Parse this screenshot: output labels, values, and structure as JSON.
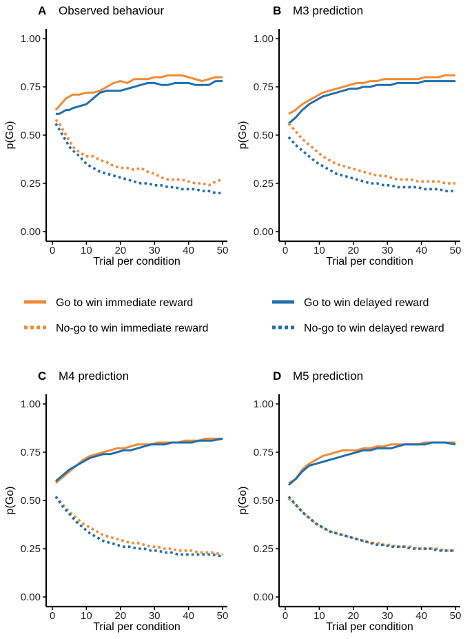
{
  "figure": {
    "legend": {
      "entries": [
        {
          "label": "Go to win immediate reward",
          "color": "#F08A35",
          "style": "solid"
        },
        {
          "label": "Go to win delayed reward",
          "color": "#1F6FAE",
          "style": "solid"
        },
        {
          "label": "No-go to win immediate reward",
          "color": "#F08A35",
          "style": "dotted"
        },
        {
          "label": "No-go to win delayed reward",
          "color": "#1F6FAE",
          "style": "dotted"
        }
      ]
    }
  },
  "chart_data": [
    {
      "type": "line",
      "panel_letter": "A",
      "title": "Observed behaviour",
      "xlabel": "Trial per condition",
      "ylabel": "p(Go)",
      "xlim": [
        0,
        50
      ],
      "ylim": [
        0,
        1
      ],
      "xticks": [
        0,
        10,
        20,
        30,
        40,
        50
      ],
      "yticks": [
        "0.00",
        "0.25",
        "0.50",
        "0.75",
        "1.00"
      ],
      "series": [
        {
          "name": "Go to win immediate reward",
          "color": "#F08A35",
          "style": "solid",
          "x": [
            1,
            2,
            3,
            4,
            5,
            6,
            8,
            10,
            12,
            14,
            16,
            18,
            20,
            22,
            24,
            26,
            28,
            30,
            32,
            34,
            36,
            38,
            40,
            42,
            44,
            46,
            48,
            50
          ],
          "y": [
            0.63,
            0.65,
            0.67,
            0.69,
            0.7,
            0.71,
            0.71,
            0.72,
            0.72,
            0.73,
            0.75,
            0.77,
            0.78,
            0.77,
            0.79,
            0.79,
            0.79,
            0.8,
            0.8,
            0.81,
            0.81,
            0.81,
            0.8,
            0.79,
            0.78,
            0.79,
            0.8,
            0.8
          ]
        },
        {
          "name": "Go to win delayed reward",
          "color": "#1F6FAE",
          "style": "solid",
          "x": [
            1,
            2,
            3,
            4,
            5,
            6,
            8,
            10,
            12,
            14,
            16,
            18,
            20,
            22,
            24,
            26,
            28,
            30,
            32,
            34,
            36,
            38,
            40,
            42,
            44,
            46,
            48,
            50
          ],
          "y": [
            0.61,
            0.61,
            0.62,
            0.63,
            0.63,
            0.64,
            0.65,
            0.66,
            0.69,
            0.72,
            0.73,
            0.73,
            0.73,
            0.74,
            0.75,
            0.76,
            0.77,
            0.77,
            0.76,
            0.76,
            0.77,
            0.77,
            0.77,
            0.76,
            0.76,
            0.76,
            0.78,
            0.78
          ]
        },
        {
          "name": "No-go to win immediate reward",
          "color": "#F08A35",
          "style": "dotted",
          "x": [
            1,
            2,
            3,
            4,
            5,
            6,
            8,
            10,
            12,
            14,
            16,
            18,
            20,
            22,
            24,
            26,
            28,
            30,
            32,
            34,
            36,
            38,
            40,
            42,
            44,
            46,
            48,
            50
          ],
          "y": [
            0.58,
            0.56,
            0.53,
            0.5,
            0.47,
            0.44,
            0.41,
            0.39,
            0.39,
            0.37,
            0.36,
            0.34,
            0.33,
            0.33,
            0.32,
            0.33,
            0.31,
            0.3,
            0.28,
            0.27,
            0.27,
            0.27,
            0.26,
            0.25,
            0.25,
            0.24,
            0.26,
            0.27
          ]
        },
        {
          "name": "No-go to win delayed reward",
          "color": "#1F6FAE",
          "style": "dotted",
          "x": [
            1,
            2,
            3,
            4,
            5,
            6,
            8,
            10,
            12,
            14,
            16,
            18,
            20,
            22,
            24,
            26,
            28,
            30,
            32,
            34,
            36,
            38,
            40,
            42,
            44,
            46,
            48,
            50
          ],
          "y": [
            0.56,
            0.53,
            0.5,
            0.47,
            0.44,
            0.42,
            0.39,
            0.35,
            0.33,
            0.31,
            0.3,
            0.29,
            0.28,
            0.27,
            0.26,
            0.25,
            0.25,
            0.24,
            0.24,
            0.23,
            0.23,
            0.22,
            0.22,
            0.22,
            0.21,
            0.21,
            0.2,
            0.2
          ]
        }
      ]
    },
    {
      "type": "line",
      "panel_letter": "B",
      "title": "M3 prediction",
      "xlabel": "Trial per condition",
      "ylabel": "p(Go)",
      "xlim": [
        0,
        50
      ],
      "ylim": [
        0,
        1
      ],
      "xticks": [
        0,
        10,
        20,
        30,
        40,
        50
      ],
      "yticks": [
        "0.00",
        "0.25",
        "0.50",
        "0.75",
        "1.00"
      ],
      "series": [
        {
          "name": "Go to win immediate reward",
          "color": "#F08A35",
          "style": "solid",
          "x": [
            1,
            3,
            5,
            7,
            9,
            11,
            13,
            15,
            17,
            19,
            21,
            23,
            25,
            27,
            29,
            31,
            33,
            35,
            37,
            39,
            41,
            43,
            45,
            47,
            50
          ],
          "y": [
            0.61,
            0.63,
            0.66,
            0.68,
            0.7,
            0.72,
            0.73,
            0.74,
            0.75,
            0.76,
            0.77,
            0.77,
            0.78,
            0.78,
            0.79,
            0.79,
            0.79,
            0.79,
            0.79,
            0.79,
            0.8,
            0.8,
            0.8,
            0.81,
            0.81
          ]
        },
        {
          "name": "Go to win delayed reward",
          "color": "#1F6FAE",
          "style": "solid",
          "x": [
            1,
            3,
            5,
            7,
            9,
            11,
            13,
            15,
            17,
            19,
            21,
            23,
            25,
            27,
            29,
            31,
            33,
            35,
            37,
            39,
            41,
            43,
            45,
            47,
            50
          ],
          "y": [
            0.56,
            0.59,
            0.63,
            0.66,
            0.68,
            0.7,
            0.71,
            0.72,
            0.73,
            0.74,
            0.74,
            0.75,
            0.75,
            0.76,
            0.76,
            0.76,
            0.77,
            0.77,
            0.77,
            0.77,
            0.78,
            0.78,
            0.78,
            0.78,
            0.78
          ]
        },
        {
          "name": "No-go to win immediate reward",
          "color": "#F08A35",
          "style": "dotted",
          "x": [
            1,
            3,
            5,
            7,
            9,
            11,
            13,
            15,
            17,
            19,
            21,
            23,
            25,
            27,
            29,
            31,
            33,
            35,
            37,
            39,
            41,
            43,
            45,
            47,
            50
          ],
          "y": [
            0.56,
            0.52,
            0.48,
            0.45,
            0.42,
            0.39,
            0.37,
            0.35,
            0.34,
            0.33,
            0.32,
            0.31,
            0.3,
            0.29,
            0.29,
            0.28,
            0.27,
            0.27,
            0.27,
            0.26,
            0.26,
            0.26,
            0.26,
            0.25,
            0.25
          ]
        },
        {
          "name": "No-go to win delayed reward",
          "color": "#1F6FAE",
          "style": "dotted",
          "x": [
            1,
            3,
            5,
            7,
            9,
            11,
            13,
            15,
            17,
            19,
            21,
            23,
            25,
            27,
            29,
            31,
            33,
            35,
            37,
            39,
            41,
            43,
            45,
            47,
            50
          ],
          "y": [
            0.49,
            0.45,
            0.42,
            0.39,
            0.36,
            0.34,
            0.32,
            0.3,
            0.29,
            0.28,
            0.27,
            0.26,
            0.25,
            0.25,
            0.24,
            0.24,
            0.23,
            0.23,
            0.23,
            0.23,
            0.22,
            0.22,
            0.22,
            0.21,
            0.21
          ]
        }
      ]
    },
    {
      "type": "line",
      "panel_letter": "C",
      "title": "M4 prediction",
      "xlabel": "Trial per condition",
      "ylabel": "p(Go)",
      "xlim": [
        0,
        50
      ],
      "ylim": [
        0,
        1
      ],
      "xticks": [
        0,
        10,
        20,
        30,
        40,
        50
      ],
      "yticks": [
        "0.00",
        "0.25",
        "0.50",
        "0.75",
        "1.00"
      ],
      "series": [
        {
          "name": "Go to win immediate reward",
          "color": "#F08A35",
          "style": "solid",
          "x": [
            1,
            3,
            5,
            7,
            9,
            11,
            13,
            15,
            17,
            19,
            21,
            23,
            25,
            27,
            29,
            31,
            33,
            35,
            37,
            39,
            41,
            43,
            45,
            47,
            50
          ],
          "y": [
            0.59,
            0.62,
            0.65,
            0.68,
            0.71,
            0.73,
            0.74,
            0.75,
            0.76,
            0.77,
            0.77,
            0.78,
            0.79,
            0.79,
            0.79,
            0.8,
            0.8,
            0.8,
            0.8,
            0.81,
            0.81,
            0.81,
            0.82,
            0.82,
            0.82
          ]
        },
        {
          "name": "Go to win delayed reward",
          "color": "#1F6FAE",
          "style": "solid",
          "x": [
            1,
            3,
            5,
            7,
            9,
            11,
            13,
            15,
            17,
            19,
            21,
            23,
            25,
            27,
            29,
            31,
            33,
            35,
            37,
            39,
            41,
            43,
            45,
            47,
            50
          ],
          "y": [
            0.6,
            0.63,
            0.66,
            0.68,
            0.7,
            0.72,
            0.73,
            0.74,
            0.74,
            0.75,
            0.76,
            0.76,
            0.77,
            0.78,
            0.79,
            0.79,
            0.79,
            0.8,
            0.8,
            0.8,
            0.8,
            0.81,
            0.81,
            0.81,
            0.82
          ]
        },
        {
          "name": "No-go to win immediate reward",
          "color": "#F08A35",
          "style": "dotted",
          "x": [
            1,
            3,
            5,
            7,
            9,
            11,
            13,
            15,
            17,
            19,
            21,
            23,
            25,
            27,
            29,
            31,
            33,
            35,
            37,
            39,
            41,
            43,
            45,
            47,
            50
          ],
          "y": [
            0.52,
            0.48,
            0.44,
            0.41,
            0.38,
            0.36,
            0.34,
            0.32,
            0.31,
            0.3,
            0.29,
            0.28,
            0.28,
            0.27,
            0.26,
            0.26,
            0.25,
            0.25,
            0.24,
            0.24,
            0.24,
            0.23,
            0.23,
            0.23,
            0.22
          ]
        },
        {
          "name": "No-go to win delayed reward",
          "color": "#1F6FAE",
          "style": "dotted",
          "x": [
            1,
            3,
            5,
            7,
            9,
            11,
            13,
            15,
            17,
            19,
            21,
            23,
            25,
            27,
            29,
            31,
            33,
            35,
            37,
            39,
            41,
            43,
            45,
            47,
            50
          ],
          "y": [
            0.52,
            0.47,
            0.43,
            0.39,
            0.36,
            0.33,
            0.31,
            0.29,
            0.28,
            0.27,
            0.26,
            0.26,
            0.25,
            0.25,
            0.24,
            0.24,
            0.23,
            0.23,
            0.22,
            0.22,
            0.22,
            0.22,
            0.22,
            0.22,
            0.21
          ]
        }
      ]
    },
    {
      "type": "line",
      "panel_letter": "D",
      "title": "M5 prediction",
      "xlabel": "Trial per condition",
      "ylabel": "p(Go)",
      "xlim": [
        0,
        50
      ],
      "ylim": [
        0,
        1
      ],
      "xticks": [
        0,
        10,
        20,
        30,
        40,
        50
      ],
      "yticks": [
        "0.00",
        "0.25",
        "0.50",
        "0.75",
        "1.00"
      ],
      "series": [
        {
          "name": "Go to win immediate reward",
          "color": "#F08A35",
          "style": "solid",
          "x": [
            1,
            3,
            5,
            7,
            9,
            11,
            13,
            15,
            17,
            19,
            21,
            23,
            25,
            27,
            29,
            31,
            33,
            35,
            37,
            39,
            41,
            43,
            45,
            47,
            50
          ],
          "y": [
            0.59,
            0.61,
            0.66,
            0.69,
            0.71,
            0.73,
            0.74,
            0.75,
            0.76,
            0.76,
            0.76,
            0.77,
            0.77,
            0.78,
            0.78,
            0.79,
            0.79,
            0.79,
            0.79,
            0.79,
            0.8,
            0.8,
            0.8,
            0.8,
            0.8
          ]
        },
        {
          "name": "Go to win delayed reward",
          "color": "#1F6FAE",
          "style": "solid",
          "x": [
            1,
            3,
            5,
            7,
            9,
            11,
            13,
            15,
            17,
            19,
            21,
            23,
            25,
            27,
            29,
            31,
            33,
            35,
            37,
            39,
            41,
            43,
            45,
            47,
            50
          ],
          "y": [
            0.58,
            0.61,
            0.65,
            0.68,
            0.69,
            0.7,
            0.71,
            0.72,
            0.73,
            0.74,
            0.75,
            0.76,
            0.76,
            0.77,
            0.77,
            0.77,
            0.78,
            0.79,
            0.79,
            0.79,
            0.79,
            0.8,
            0.8,
            0.8,
            0.79
          ]
        },
        {
          "name": "No-go to win immediate reward",
          "color": "#F08A35",
          "style": "dotted",
          "x": [
            1,
            3,
            5,
            7,
            9,
            11,
            13,
            15,
            17,
            19,
            21,
            23,
            25,
            27,
            29,
            31,
            33,
            35,
            37,
            39,
            41,
            43,
            45,
            47,
            50
          ],
          "y": [
            0.51,
            0.48,
            0.44,
            0.41,
            0.38,
            0.36,
            0.34,
            0.33,
            0.32,
            0.31,
            0.3,
            0.29,
            0.28,
            0.28,
            0.27,
            0.27,
            0.26,
            0.26,
            0.26,
            0.25,
            0.25,
            0.25,
            0.25,
            0.24,
            0.24
          ]
        },
        {
          "name": "No-go to win delayed reward",
          "color": "#1F6FAE",
          "style": "dotted",
          "x": [
            1,
            3,
            5,
            7,
            9,
            11,
            13,
            15,
            17,
            19,
            21,
            23,
            25,
            27,
            29,
            31,
            33,
            35,
            37,
            39,
            41,
            43,
            45,
            47,
            50
          ],
          "y": [
            0.52,
            0.48,
            0.44,
            0.41,
            0.38,
            0.36,
            0.34,
            0.33,
            0.32,
            0.31,
            0.3,
            0.29,
            0.28,
            0.27,
            0.27,
            0.26,
            0.26,
            0.26,
            0.25,
            0.25,
            0.25,
            0.25,
            0.24,
            0.24,
            0.24
          ]
        }
      ]
    }
  ]
}
